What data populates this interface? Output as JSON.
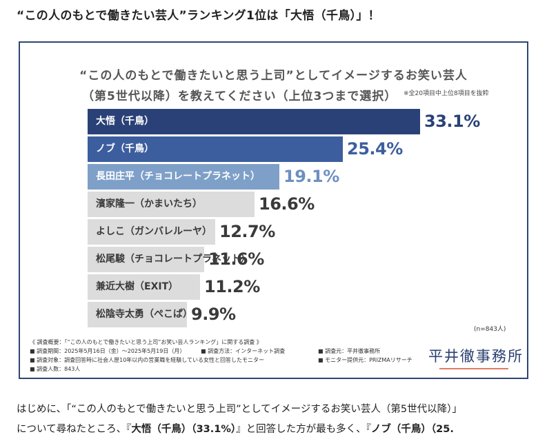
{
  "headline": "“この人のもとで働きたい芸人”ランキング1位は「大悟（千鳥）」！",
  "infographic": {
    "title_line1": "“この人のもとで働きたいと思う上司”としてイメージするお笑い芸人",
    "title_line2": "（第5世代以降）を教えてください（上位3つまで選択）",
    "note": "※全20項目中上位8項目を抜粋",
    "sample_size": "(n=843人)",
    "survey": {
      "heading": "《 調査概要：「“この人のもとで働きたいと思う上司”お笑い芸人ランキング」に関する調査 》",
      "period": "■ 調査期間：2025年5月16日（金）〜2025年5月19日（月）",
      "method": "■ 調査方法：インターネット調査",
      "organizer": "■ 調査元：平井徹事務所",
      "target": "■ 調査対象：調査回答時に社会人歴10年以内の営業職を経験している女性と回答したモニター",
      "provider": "■ モニター提供元：PRIZMAリサーチ",
      "count": "■ 調査人数：843人"
    },
    "logo": "平井徹事務所",
    "colors": {
      "top1": "#2a4178",
      "top2": "#3d5e9e",
      "top3": "#7ea0c8",
      "rest": "#dcdcdc",
      "value_dark": "#2a4178",
      "value_mid": "#3d5e9e",
      "value_light": "#6e90c0",
      "value_gray": "#3a3a3a",
      "border": "#2e4476",
      "logo_line": "#e07a5f"
    }
  },
  "chart_data": {
    "type": "bar",
    "orientation": "horizontal",
    "categories": [
      "大悟（千鳥）",
      "ノブ（千鳥）",
      "長田庄平（チョコレートプラネット）",
      "濱家隆一（かまいたち）",
      "よしこ（ガンバレルーヤ）",
      "松尾駿（チョコレートプラネット）",
      "兼近大樹（EXIT）",
      "松陰寺太勇（ぺこぱ）"
    ],
    "values": [
      33.1,
      25.4,
      19.1,
      16.6,
      12.7,
      11.6,
      11.2,
      9.9
    ],
    "value_labels": [
      "33.1%",
      "25.4%",
      "19.1%",
      "16.6%",
      "12.7%",
      "11.6%",
      "11.2%",
      "9.9%"
    ],
    "xlim": [
      0,
      33.1
    ],
    "grid": false
  },
  "paragraph": {
    "line1": "はじめに、「“この人のもとで働きたいと思う上司”としてイメージするお笑い芸人（第5世代以降）」",
    "line2_pre": "について尋ねたところ、『",
    "line2_bold1": "大悟（千鳥）（33.1%）",
    "line2_mid": "』と回答した方が最も多く、『",
    "line2_bold2": "ノブ（千鳥）（25."
  }
}
